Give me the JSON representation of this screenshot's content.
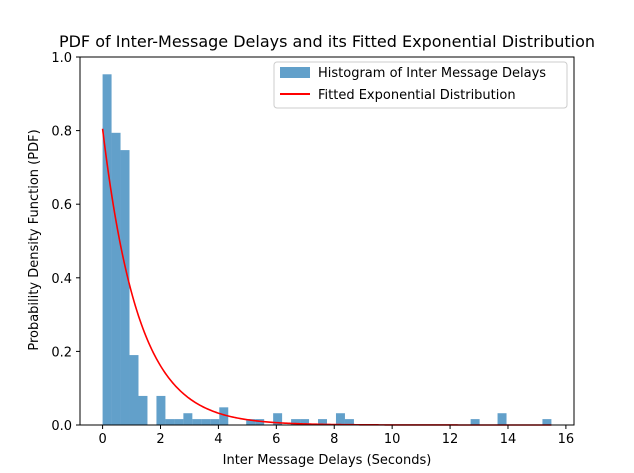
{
  "chart_data": {
    "type": "bar",
    "title": "PDF of Inter-Message Delays and its Fitted Exponential Distribution",
    "xlabel": "Inter Message Delays (Seconds)",
    "ylabel": "Probability Density Function (PDF)",
    "xlim": [
      -0.78,
      16.28
    ],
    "ylim": [
      0,
      1.0
    ],
    "xticks": [
      0,
      2,
      4,
      6,
      8,
      10,
      12,
      14,
      16
    ],
    "yticks": [
      0.0,
      0.2,
      0.4,
      0.6,
      0.8,
      1.0
    ],
    "grid": false,
    "legend_position": "upper-right",
    "series": [
      {
        "name": "Histogram of Inter Message Delays",
        "kind": "histogram",
        "color": "#1f77b4",
        "alpha": 0.7,
        "bin_width": 0.31,
        "bins": [
          {
            "x0": 0.0,
            "y": 0.953
          },
          {
            "x0": 0.31,
            "y": 0.794
          },
          {
            "x0": 0.62,
            "y": 0.747
          },
          {
            "x0": 0.93,
            "y": 0.19
          },
          {
            "x0": 1.24,
            "y": 0.079
          },
          {
            "x0": 1.86,
            "y": 0.079
          },
          {
            "x0": 2.17,
            "y": 0.016
          },
          {
            "x0": 2.48,
            "y": 0.016
          },
          {
            "x0": 2.79,
            "y": 0.032
          },
          {
            "x0": 3.1,
            "y": 0.016
          },
          {
            "x0": 3.41,
            "y": 0.016
          },
          {
            "x0": 3.72,
            "y": 0.016
          },
          {
            "x0": 4.03,
            "y": 0.048
          },
          {
            "x0": 4.96,
            "y": 0.016
          },
          {
            "x0": 5.27,
            "y": 0.016
          },
          {
            "x0": 5.89,
            "y": 0.032
          },
          {
            "x0": 6.51,
            "y": 0.016
          },
          {
            "x0": 6.82,
            "y": 0.016
          },
          {
            "x0": 7.44,
            "y": 0.016
          },
          {
            "x0": 8.06,
            "y": 0.032
          },
          {
            "x0": 8.37,
            "y": 0.016
          },
          {
            "x0": 12.71,
            "y": 0.016
          },
          {
            "x0": 13.64,
            "y": 0.032
          },
          {
            "x0": 15.19,
            "y": 0.016
          }
        ]
      },
      {
        "name": "Fitted Exponential Distribution",
        "kind": "line",
        "color": "#ff0000",
        "function": "exponential_pdf",
        "lambda": 0.805,
        "x_range": [
          0,
          15.5
        ]
      }
    ]
  }
}
